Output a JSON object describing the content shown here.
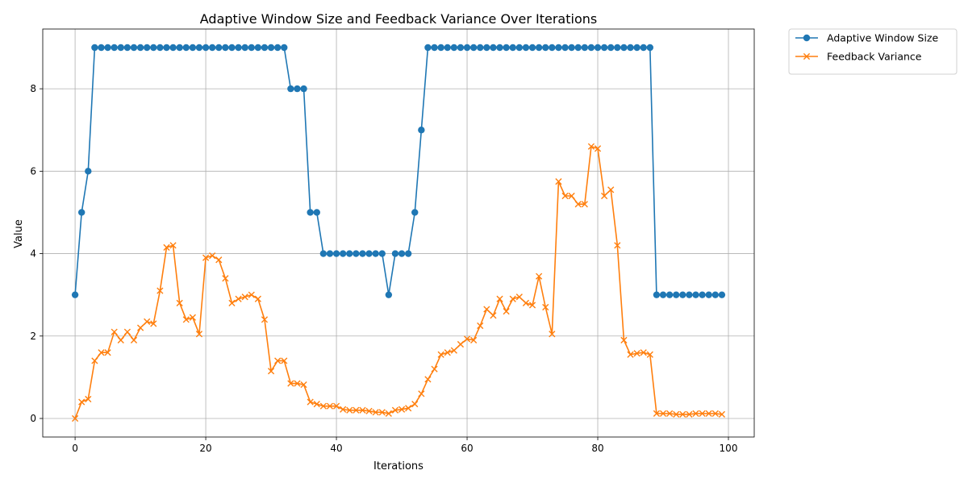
{
  "chart_data": {
    "type": "line",
    "title": "Adaptive Window Size and Feedback Variance Over Iterations",
    "xlabel": "Iterations",
    "ylabel": "Value",
    "xlim": [
      -4.95,
      103.95
    ],
    "ylim": [
      -0.45,
      9.45
    ],
    "xticks": [
      0,
      20,
      40,
      60,
      80,
      100
    ],
    "yticks": [
      0,
      2,
      4,
      6,
      8
    ],
    "grid": true,
    "legend_position": "outside-top-right",
    "x": [
      0,
      1,
      2,
      3,
      4,
      5,
      6,
      7,
      8,
      9,
      10,
      11,
      12,
      13,
      14,
      15,
      16,
      17,
      18,
      19,
      20,
      21,
      22,
      23,
      24,
      25,
      26,
      27,
      28,
      29,
      30,
      31,
      32,
      33,
      34,
      35,
      36,
      37,
      38,
      39,
      40,
      41,
      42,
      43,
      44,
      45,
      46,
      47,
      48,
      49,
      50,
      51,
      52,
      53,
      54,
      55,
      56,
      57,
      58,
      59,
      60,
      61,
      62,
      63,
      64,
      65,
      66,
      67,
      68,
      69,
      70,
      71,
      72,
      73,
      74,
      75,
      76,
      77,
      78,
      79,
      80,
      81,
      82,
      83,
      84,
      85,
      86,
      87,
      88,
      89,
      90,
      91,
      92,
      93,
      94,
      95,
      96,
      97,
      98,
      99
    ],
    "series": [
      {
        "name": "Adaptive Window Size",
        "color": "#1f77b4",
        "marker": "circle",
        "values": [
          3,
          5,
          6,
          9,
          9,
          9,
          9,
          9,
          9,
          9,
          9,
          9,
          9,
          9,
          9,
          9,
          9,
          9,
          9,
          9,
          9,
          9,
          9,
          9,
          9,
          9,
          9,
          9,
          9,
          9,
          9,
          9,
          9,
          8,
          8,
          8,
          5,
          5,
          4,
          4,
          4,
          4,
          4,
          4,
          4,
          4,
          4,
          4,
          3,
          4,
          4,
          4,
          5,
          7,
          9,
          9,
          9,
          9,
          9,
          9,
          9,
          9,
          9,
          9,
          9,
          9,
          9,
          9,
          9,
          9,
          9,
          9,
          9,
          9,
          9,
          9,
          9,
          9,
          9,
          9,
          9,
          9,
          9,
          9,
          9,
          9,
          9,
          9,
          9,
          3,
          3,
          3,
          3,
          3,
          3,
          3,
          3,
          3,
          3,
          3
        ]
      },
      {
        "name": "Feedback Variance",
        "color": "#ff7f0e",
        "marker": "x",
        "values": [
          0.0,
          0.4,
          0.47,
          1.4,
          1.6,
          1.6,
          2.1,
          1.9,
          2.1,
          1.9,
          2.2,
          2.35,
          2.3,
          3.1,
          4.15,
          4.2,
          2.8,
          2.4,
          2.45,
          2.05,
          3.9,
          3.95,
          3.85,
          3.4,
          2.8,
          2.9,
          2.95,
          3.0,
          2.9,
          2.4,
          1.15,
          1.4,
          1.4,
          0.85,
          0.85,
          0.82,
          0.4,
          0.35,
          0.3,
          0.3,
          0.3,
          0.22,
          0.2,
          0.2,
          0.2,
          0.18,
          0.15,
          0.15,
          0.12,
          0.2,
          0.22,
          0.25,
          0.35,
          0.6,
          0.95,
          1.2,
          1.55,
          1.6,
          1.65,
          1.8,
          1.93,
          1.9,
          2.25,
          2.65,
          2.5,
          2.9,
          2.6,
          2.9,
          2.95,
          2.8,
          2.75,
          3.45,
          2.7,
          2.05,
          5.75,
          5.4,
          5.4,
          5.2,
          5.2,
          6.6,
          6.55,
          5.4,
          5.55,
          4.2,
          1.9,
          1.55,
          1.58,
          1.6,
          1.55,
          0.12,
          0.12,
          0.12,
          0.1,
          0.1,
          0.1,
          0.12,
          0.12,
          0.12,
          0.12,
          0.1
        ]
      }
    ]
  }
}
